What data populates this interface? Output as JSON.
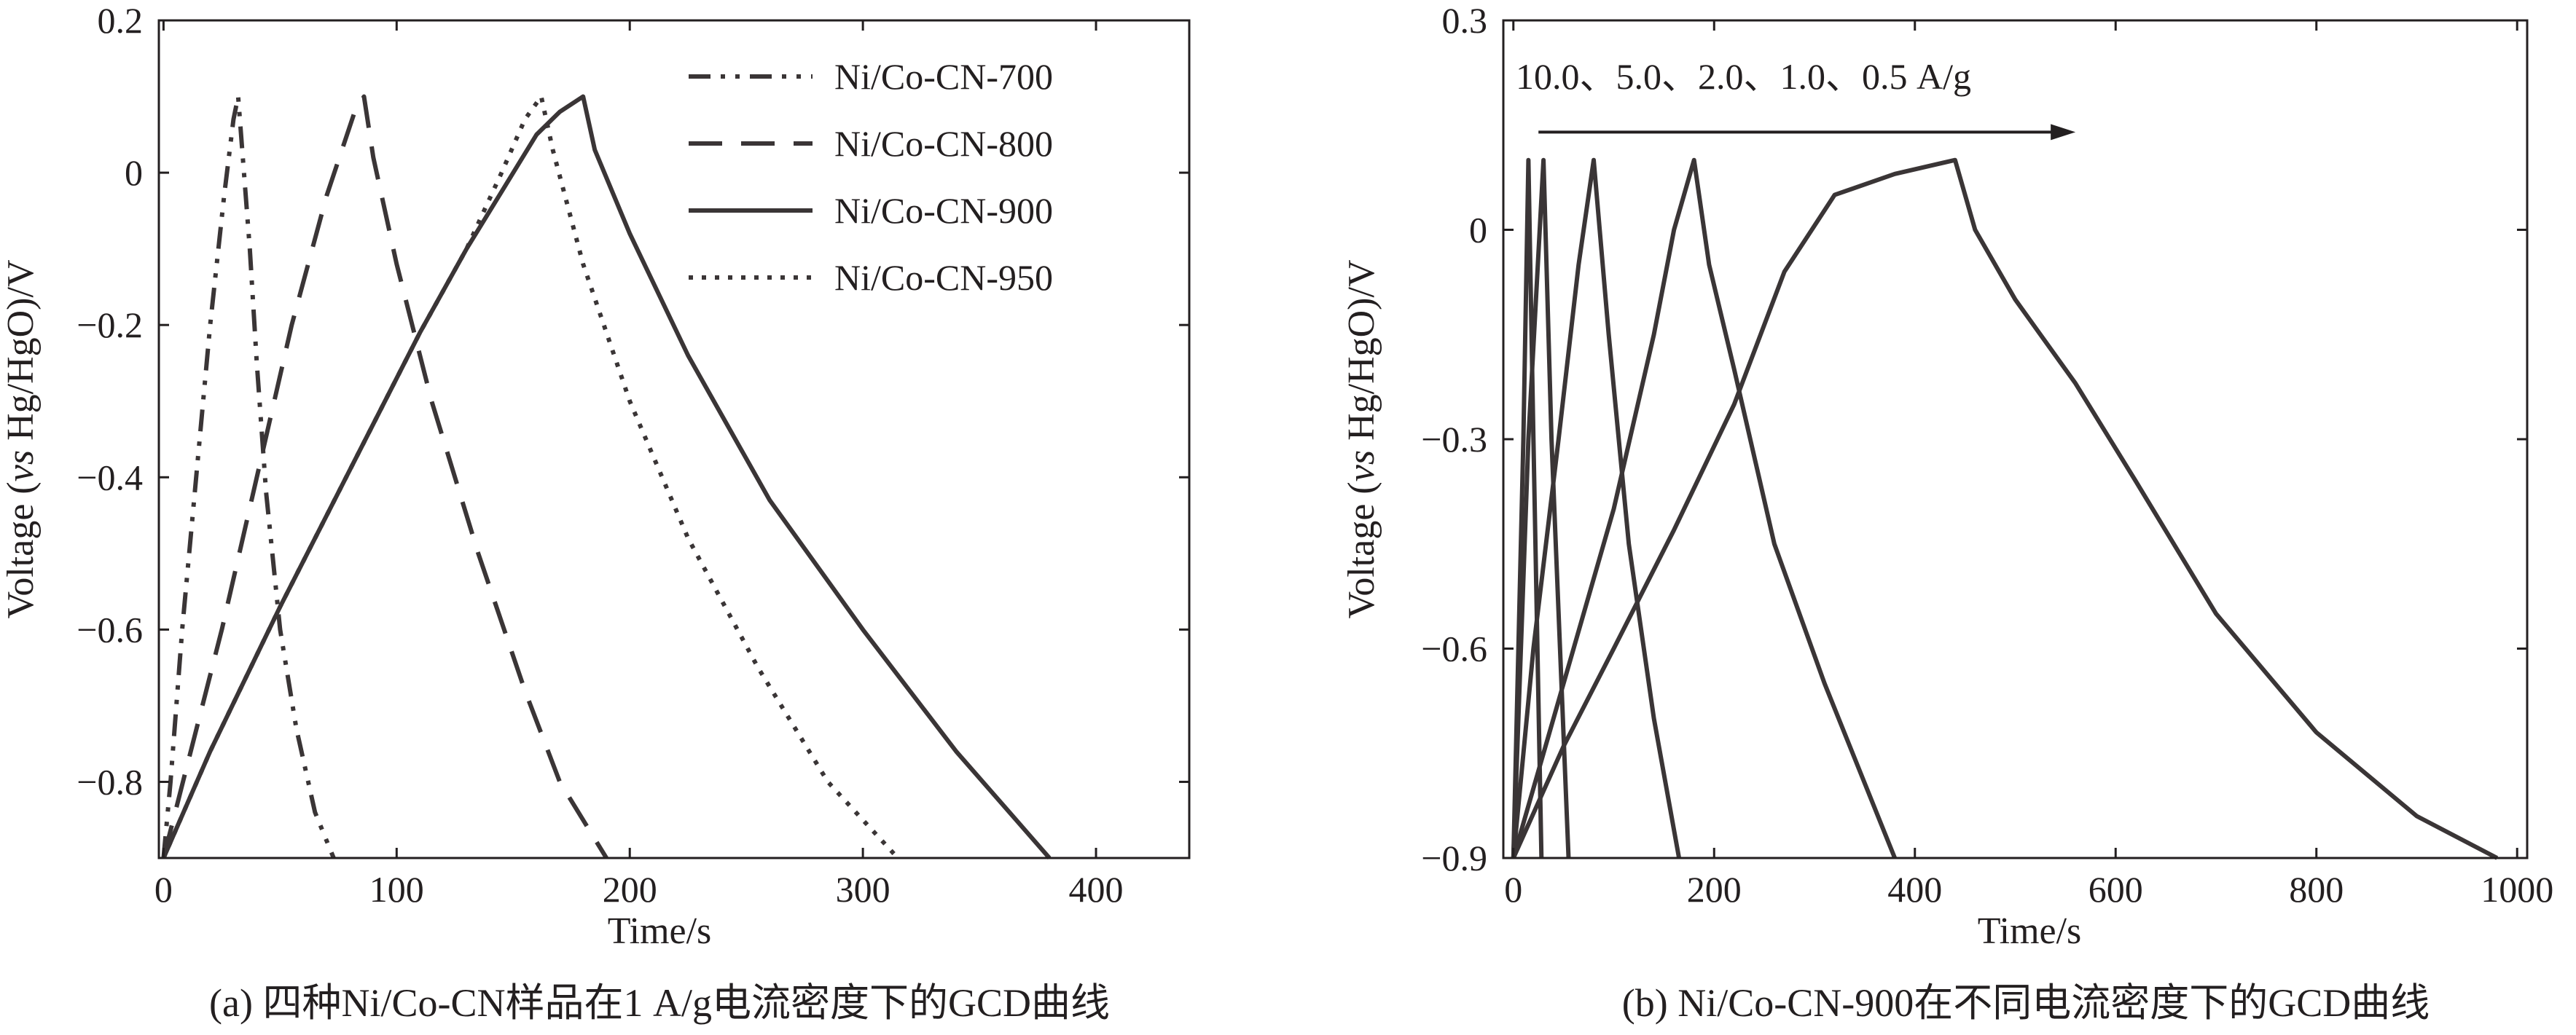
{
  "chart_data": [
    {
      "panel": "a",
      "type": "line",
      "caption": "(a) 四种Ni/Co-CN样品在1 A/g电流密度下的GCD曲线",
      "xlabel": "Time/s",
      "ylabel_parts": [
        "Voltage (",
        "vs",
        " Hg/HgO)/V"
      ],
      "xlim": [
        -2,
        440
      ],
      "ylim": [
        -0.9,
        0.2
      ],
      "xticks": [
        0,
        100,
        200,
        300,
        400
      ],
      "xtick_labels": [
        "0",
        "100",
        "200",
        "300",
        "400"
      ],
      "yticks": [
        -0.8,
        -0.6,
        -0.4,
        -0.2,
        0,
        0.2
      ],
      "ytick_labels": [
        "−0.8",
        "−0.6",
        "−0.4",
        "−0.2",
        "0",
        "0.2"
      ],
      "legend_position": "top-right",
      "series": [
        {
          "name": "Ni/Co-CN-700",
          "style": "dash-dot-dot",
          "points": [
            [
              0,
              -0.9
            ],
            [
              3,
              -0.8
            ],
            [
              8,
              -0.6
            ],
            [
              14,
              -0.4
            ],
            [
              20,
              -0.2
            ],
            [
              26,
              -0.03
            ],
            [
              30,
              0.07
            ],
            [
              32,
              0.1
            ],
            [
              34,
              0.02
            ],
            [
              37,
              -0.1
            ],
            [
              40,
              -0.25
            ],
            [
              44,
              -0.42
            ],
            [
              50,
              -0.6
            ],
            [
              57,
              -0.73
            ],
            [
              65,
              -0.84
            ],
            [
              73,
              -0.9
            ]
          ]
        },
        {
          "name": "Ni/Co-CN-800",
          "style": "dash",
          "points": [
            [
              0,
              -0.9
            ],
            [
              10,
              -0.78
            ],
            [
              25,
              -0.6
            ],
            [
              40,
              -0.4
            ],
            [
              55,
              -0.2
            ],
            [
              70,
              -0.03
            ],
            [
              82,
              0.08
            ],
            [
              86,
              0.1
            ],
            [
              90,
              0.02
            ],
            [
              100,
              -0.12
            ],
            [
              115,
              -0.3
            ],
            [
              135,
              -0.5
            ],
            [
              155,
              -0.68
            ],
            [
              170,
              -0.8
            ],
            [
              190,
              -0.9
            ]
          ]
        },
        {
          "name": "Ni/Co-CN-900",
          "style": "solid",
          "points": [
            [
              0,
              -0.9
            ],
            [
              20,
              -0.76
            ],
            [
              50,
              -0.57
            ],
            [
              80,
              -0.39
            ],
            [
              110,
              -0.21
            ],
            [
              130,
              -0.1
            ],
            [
              150,
              0.0
            ],
            [
              160,
              0.05
            ],
            [
              170,
              0.08
            ],
            [
              180,
              0.1
            ],
            [
              185,
              0.03
            ],
            [
              200,
              -0.08
            ],
            [
              225,
              -0.24
            ],
            [
              260,
              -0.43
            ],
            [
              300,
              -0.6
            ],
            [
              340,
              -0.76
            ],
            [
              380,
              -0.9
            ]
          ]
        },
        {
          "name": "Ni/Co-CN-950",
          "style": "dot",
          "points": [
            [
              0,
              -0.9
            ],
            [
              20,
              -0.76
            ],
            [
              50,
              -0.57
            ],
            [
              80,
              -0.39
            ],
            [
              110,
              -0.21
            ],
            [
              130,
              -0.1
            ],
            [
              145,
              0.0
            ],
            [
              155,
              0.07
            ],
            [
              162,
              0.1
            ],
            [
              167,
              0.03
            ],
            [
              180,
              -0.12
            ],
            [
              200,
              -0.3
            ],
            [
              225,
              -0.48
            ],
            [
              255,
              -0.65
            ],
            [
              285,
              -0.8
            ],
            [
              315,
              -0.9
            ]
          ]
        }
      ]
    },
    {
      "panel": "b",
      "type": "line",
      "caption": "(b) Ni/Co-CN-900在不同电流密度下的GCD曲线",
      "xlabel": "Time/s",
      "ylabel_parts": [
        "Voltage (",
        "vs",
        " Hg/HgO)/V"
      ],
      "xlim": [
        -10,
        1010
      ],
      "ylim": [
        -0.9,
        0.3
      ],
      "xticks": [
        0,
        200,
        400,
        600,
        800,
        1000
      ],
      "xtick_labels": [
        "0",
        "200",
        "400",
        "600",
        "800",
        "1000"
      ],
      "yticks": [
        -0.9,
        -0.6,
        -0.3,
        0,
        0.3
      ],
      "ytick_labels": [
        "−0.9",
        "−0.6",
        "−0.3",
        "0",
        "0.3"
      ],
      "annotation": "10.0、5.0、2.0、1.0、0.5 A/g",
      "annotation_arrow": {
        "from": [
          25,
          0.14
        ],
        "to": [
          560,
          0.14
        ]
      },
      "series": [
        {
          "name": "10.0 A/g",
          "style": "solid",
          "points": [
            [
              0,
              -0.9
            ],
            [
              10,
              -0.3
            ],
            [
              15,
              0.1
            ],
            [
              20,
              -0.3
            ],
            [
              28,
              -0.9
            ]
          ]
        },
        {
          "name": "5.0 A/g",
          "style": "solid",
          "points": [
            [
              0,
              -0.9
            ],
            [
              15,
              -0.3
            ],
            [
              30,
              0.1
            ],
            [
              38,
              -0.3
            ],
            [
              55,
              -0.9
            ]
          ]
        },
        {
          "name": "2.0 A/g",
          "style": "solid",
          "points": [
            [
              0,
              -0.9
            ],
            [
              20,
              -0.6
            ],
            [
              45,
              -0.3
            ],
            [
              65,
              -0.05
            ],
            [
              80,
              0.1
            ],
            [
              95,
              -0.15
            ],
            [
              115,
              -0.45
            ],
            [
              140,
              -0.7
            ],
            [
              165,
              -0.9
            ]
          ]
        },
        {
          "name": "1.0 A/g",
          "style": "solid",
          "points": [
            [
              0,
              -0.9
            ],
            [
              30,
              -0.75
            ],
            [
              60,
              -0.6
            ],
            [
              100,
              -0.4
            ],
            [
              140,
              -0.15
            ],
            [
              160,
              0.0
            ],
            [
              180,
              0.1
            ],
            [
              195,
              -0.05
            ],
            [
              220,
              -0.2
            ],
            [
              260,
              -0.45
            ],
            [
              310,
              -0.65
            ],
            [
              380,
              -0.9
            ]
          ]
        },
        {
          "name": "0.5 A/g",
          "style": "solid",
          "points": [
            [
              0,
              -0.9
            ],
            [
              50,
              -0.74
            ],
            [
              100,
              -0.6
            ],
            [
              160,
              -0.43
            ],
            [
              220,
              -0.25
            ],
            [
              270,
              -0.06
            ],
            [
              320,
              0.05
            ],
            [
              380,
              0.08
            ],
            [
              440,
              0.1
            ],
            [
              460,
              0.0
            ],
            [
              500,
              -0.1
            ],
            [
              560,
              -0.22
            ],
            [
              620,
              -0.36
            ],
            [
              700,
              -0.55
            ],
            [
              800,
              -0.72
            ],
            [
              900,
              -0.84
            ],
            [
              980,
              -0.9
            ]
          ]
        }
      ]
    }
  ]
}
